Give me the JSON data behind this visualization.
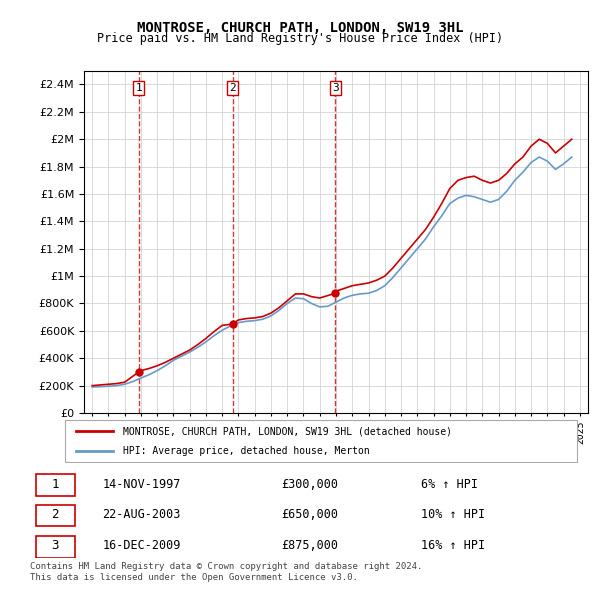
{
  "title": "MONTROSE, CHURCH PATH, LONDON, SW19 3HL",
  "subtitle": "Price paid vs. HM Land Registry's House Price Index (HPI)",
  "sale_color": "#cc0000",
  "hpi_color": "#6699cc",
  "sales": [
    {
      "label": "1",
      "date": 1997.87,
      "price": 300000,
      "pct": "6%"
    },
    {
      "label": "2",
      "date": 2003.64,
      "price": 650000,
      "pct": "10%"
    },
    {
      "label": "3",
      "date": 2009.96,
      "price": 875000,
      "pct": "16%"
    }
  ],
  "sale_dates_display": [
    "14-NOV-1997",
    "22-AUG-2003",
    "16-DEC-2009"
  ],
  "sale_prices_display": [
    "£300,000",
    "£650,000",
    "£875,000"
  ],
  "sale_pcts_display": [
    "6% ↑ HPI",
    "10% ↑ HPI",
    "16% ↑ HPI"
  ],
  "legend_line1": "MONTROSE, CHURCH PATH, LONDON, SW19 3HL (detached house)",
  "legend_line2": "HPI: Average price, detached house, Merton",
  "footer1": "Contains HM Land Registry data © Crown copyright and database right 2024.",
  "footer2": "This data is licensed under the Open Government Licence v3.0.",
  "ylim": [
    0,
    2500000
  ],
  "yticks": [
    0,
    200000,
    400000,
    600000,
    800000,
    1000000,
    1200000,
    1400000,
    1600000,
    1800000,
    2000000,
    2200000,
    2400000
  ],
  "xlim": [
    1994.5,
    2025.5
  ],
  "xticks": [
    1995,
    1996,
    1997,
    1998,
    1999,
    2000,
    2001,
    2002,
    2003,
    2004,
    2005,
    2006,
    2007,
    2008,
    2009,
    2010,
    2011,
    2012,
    2013,
    2014,
    2015,
    2016,
    2017,
    2018,
    2019,
    2020,
    2021,
    2022,
    2023,
    2024,
    2025
  ],
  "property_x": [
    1995.0,
    1995.5,
    1996.0,
    1996.5,
    1997.0,
    1997.87,
    1998.0,
    1998.5,
    1999.0,
    1999.5,
    2000.0,
    2000.5,
    2001.0,
    2001.5,
    2002.0,
    2002.5,
    2003.0,
    2003.64,
    2004.0,
    2004.5,
    2005.0,
    2005.5,
    2006.0,
    2006.5,
    2007.0,
    2007.5,
    2008.0,
    2008.5,
    2009.0,
    2009.96,
    2010.0,
    2010.5,
    2011.0,
    2011.5,
    2012.0,
    2012.5,
    2013.0,
    2013.5,
    2014.0,
    2014.5,
    2015.0,
    2015.5,
    2016.0,
    2016.5,
    2017.0,
    2017.5,
    2018.0,
    2018.5,
    2019.0,
    2019.5,
    2020.0,
    2020.5,
    2021.0,
    2021.5,
    2022.0,
    2022.5,
    2023.0,
    2023.5,
    2024.0,
    2024.5
  ],
  "property_y": [
    200000,
    205000,
    210000,
    215000,
    225000,
    300000,
    310000,
    325000,
    345000,
    370000,
    400000,
    430000,
    460000,
    500000,
    545000,
    595000,
    640000,
    650000,
    680000,
    690000,
    695000,
    705000,
    730000,
    770000,
    820000,
    870000,
    870000,
    850000,
    840000,
    875000,
    890000,
    910000,
    930000,
    940000,
    950000,
    970000,
    1000000,
    1060000,
    1130000,
    1200000,
    1270000,
    1340000,
    1430000,
    1530000,
    1640000,
    1700000,
    1720000,
    1730000,
    1700000,
    1680000,
    1700000,
    1750000,
    1820000,
    1870000,
    1950000,
    2000000,
    1970000,
    1900000,
    1950000,
    2000000
  ],
  "hpi_x": [
    1995.0,
    1995.5,
    1996.0,
    1996.5,
    1997.0,
    1997.5,
    1998.0,
    1998.5,
    1999.0,
    1999.5,
    2000.0,
    2000.5,
    2001.0,
    2001.5,
    2002.0,
    2002.5,
    2003.0,
    2003.5,
    2004.0,
    2004.5,
    2005.0,
    2005.5,
    2006.0,
    2006.5,
    2007.0,
    2007.5,
    2008.0,
    2008.5,
    2009.0,
    2009.5,
    2010.0,
    2010.5,
    2011.0,
    2011.5,
    2012.0,
    2012.5,
    2013.0,
    2013.5,
    2014.0,
    2014.5,
    2015.0,
    2015.5,
    2016.0,
    2016.5,
    2017.0,
    2017.5,
    2018.0,
    2018.5,
    2019.0,
    2019.5,
    2020.0,
    2020.5,
    2021.0,
    2021.5,
    2022.0,
    2022.5,
    2023.0,
    2023.5,
    2024.0,
    2024.5
  ],
  "hpi_y": [
    190000,
    192000,
    196000,
    200000,
    210000,
    230000,
    255000,
    280000,
    310000,
    345000,
    385000,
    415000,
    445000,
    480000,
    520000,
    565000,
    605000,
    635000,
    660000,
    670000,
    675000,
    685000,
    710000,
    750000,
    800000,
    840000,
    835000,
    800000,
    775000,
    780000,
    810000,
    840000,
    860000,
    870000,
    875000,
    895000,
    930000,
    990000,
    1060000,
    1130000,
    1200000,
    1270000,
    1360000,
    1440000,
    1530000,
    1570000,
    1590000,
    1580000,
    1560000,
    1540000,
    1560000,
    1620000,
    1700000,
    1760000,
    1830000,
    1870000,
    1840000,
    1780000,
    1820000,
    1870000
  ],
  "background_color": "#ffffff",
  "grid_color": "#cccccc"
}
